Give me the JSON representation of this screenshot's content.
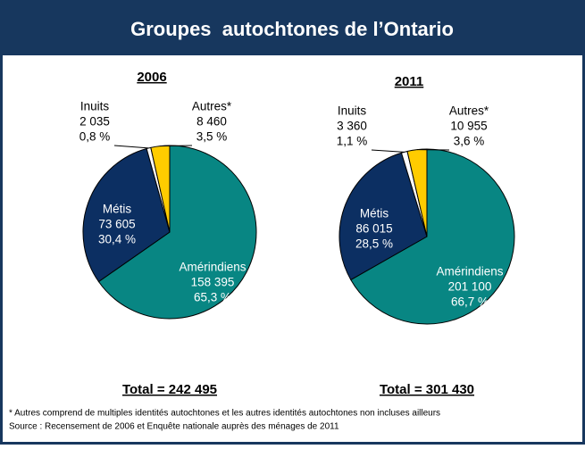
{
  "header": {
    "title": "Groupes  autochtones de l’Ontario"
  },
  "chart_data": [
    {
      "type": "pie",
      "title": "2006",
      "categories": [
        "Amérindiens",
        "Métis",
        "Inuits",
        "Autres*"
      ],
      "values": [
        65.3,
        30.4,
        0.8,
        3.5
      ],
      "value_labels": [
        "65,3 %",
        "30,4 %",
        "0,8 %",
        "3,5 %"
      ],
      "counts": [
        158395,
        73605,
        2035,
        8460
      ],
      "count_labels": [
        "158 395",
        "73 605",
        "2 035",
        "8 460"
      ],
      "colors": [
        "#088683",
        "#0c2f62",
        "#ffffff",
        "#ffcc00"
      ],
      "total_label": "Total = 242 495"
    },
    {
      "type": "pie",
      "title": "2011",
      "categories": [
        "Amérindiens",
        "Métis",
        "Inuits",
        "Autres*"
      ],
      "values": [
        66.7,
        28.5,
        1.1,
        3.6
      ],
      "value_labels": [
        "66,7 %",
        "28,5 %",
        "1,1 %",
        "3,6 %"
      ],
      "counts": [
        201100,
        86015,
        3360,
        10955
      ],
      "count_labels": [
        "201 100",
        "86 015",
        "3 360",
        "10 955"
      ],
      "colors": [
        "#088683",
        "#0c2f62",
        "#ffffff",
        "#ffcc00"
      ],
      "total_label": "Total = 301 430"
    }
  ],
  "notes": [
    "* Autres comprend de multiples identités autochtones et les autres identités autochtones non incluses ailleurs",
    "Source : Recensement de 2006 et Enquête nationale auprès des ménages de 2011"
  ]
}
